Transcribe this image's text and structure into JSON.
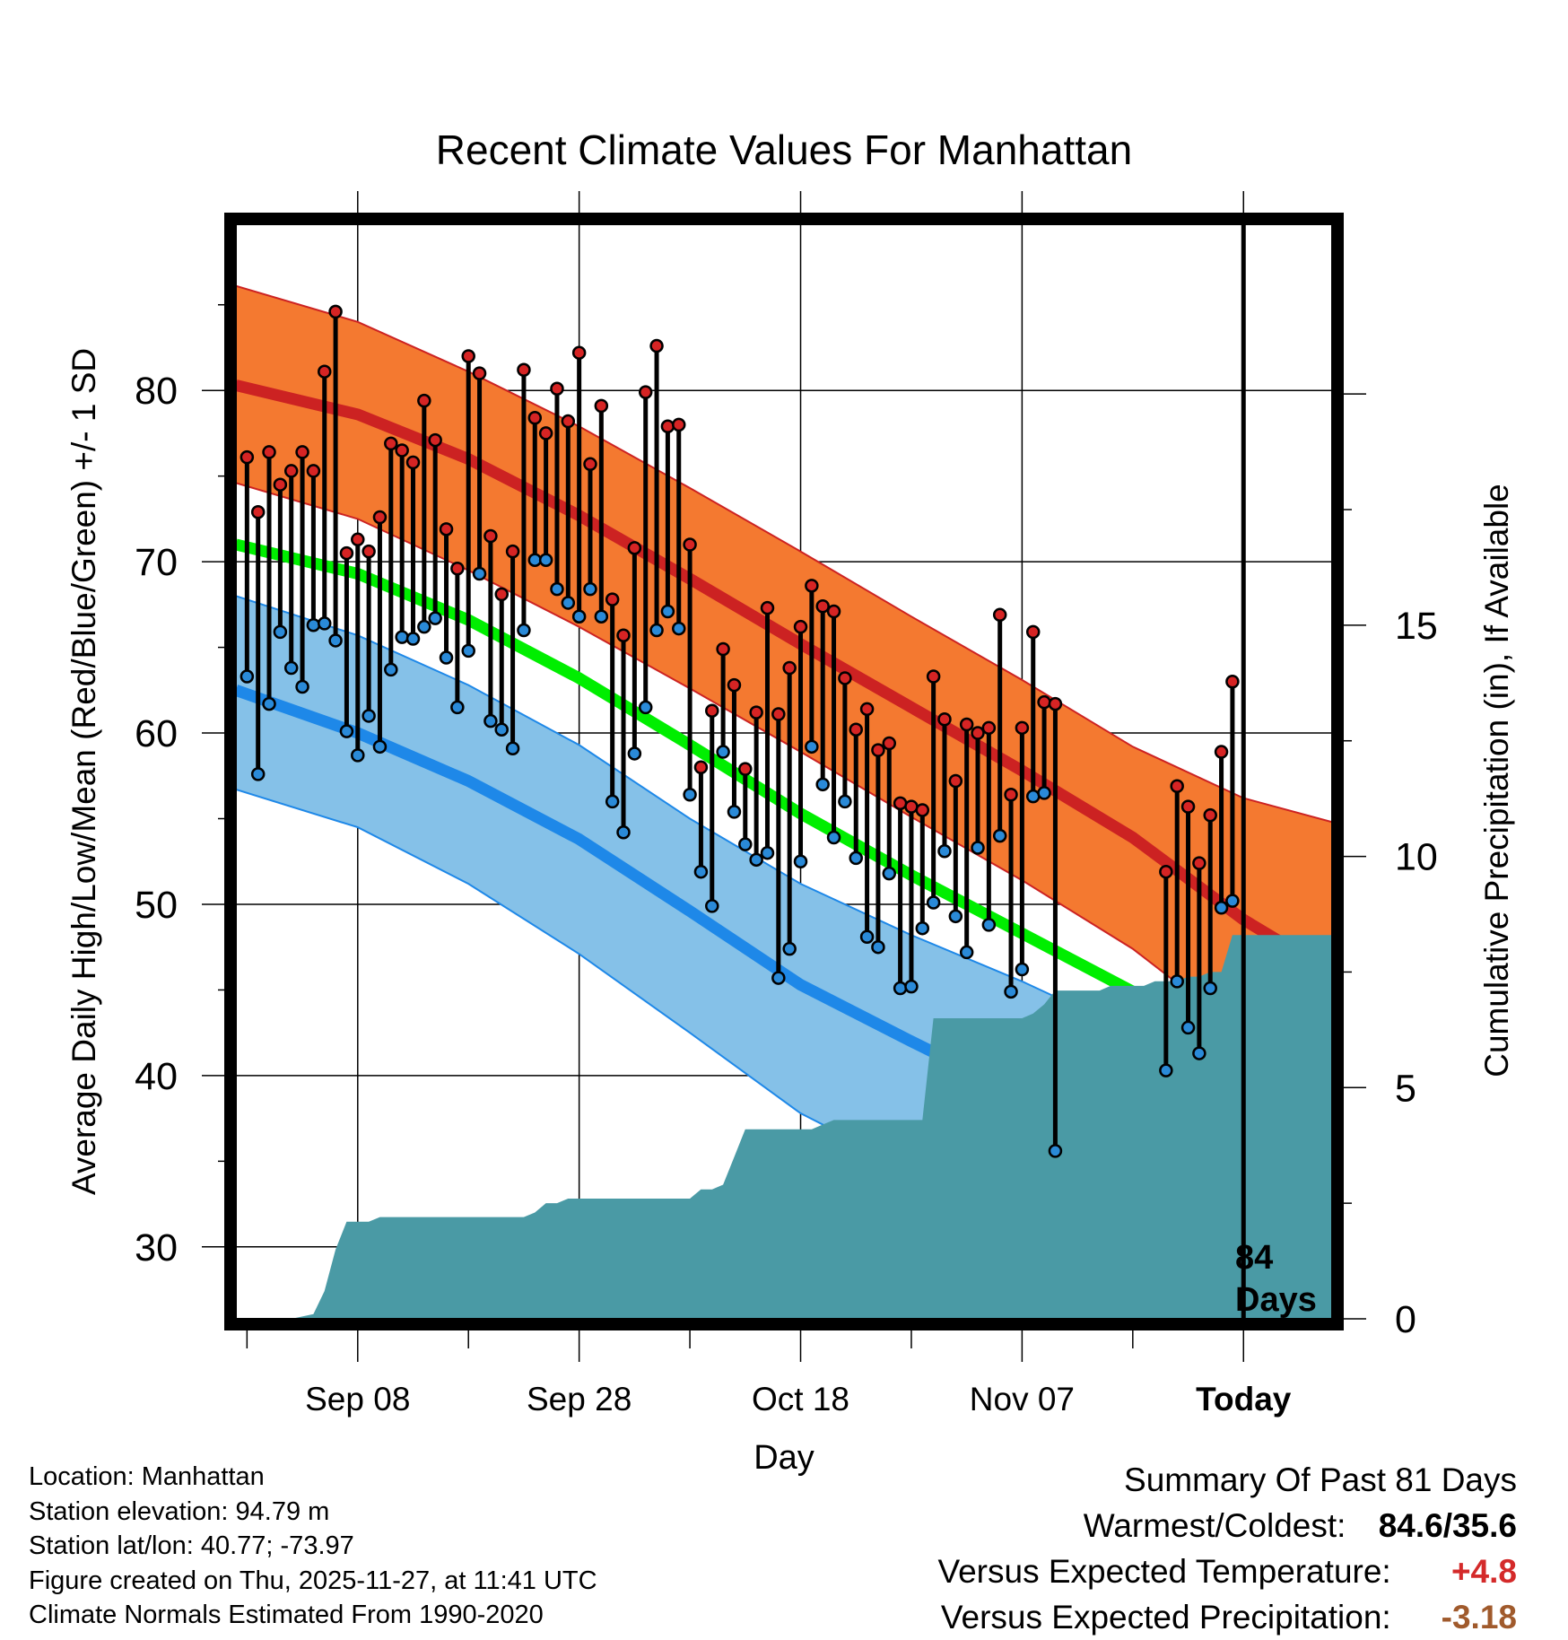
{
  "chart_data": {
    "type": "line",
    "title": "Recent Climate Values For Manhattan",
    "xlabel": "Day",
    "ylabel": "Average Daily High/Low/Mean (Red/Blue/Green) +/- 1 SD",
    "y2label": "Cumulative Precipitation (in), If Available",
    "ylim": [
      25.8,
      89.7
    ],
    "y2lim": [
      0,
      23.67
    ],
    "xlim": [
      -11,
      88
    ],
    "yticks": [
      "30",
      "40",
      "50",
      "60",
      "70",
      "80"
    ],
    "y2ticks": [
      "0",
      "5",
      "10",
      "15"
    ],
    "xtick_labels": [
      {
        "day": 0,
        "label": "Sep 08"
      },
      {
        "day": 20,
        "label": "Sep 28"
      },
      {
        "day": 40,
        "label": "Oct 18"
      },
      {
        "day": 60,
        "label": "Nov 07"
      },
      {
        "day": 80,
        "label": "Today"
      }
    ],
    "days_annotation": [
      "84",
      "Days"
    ],
    "normals": {
      "days": [
        -11,
        0,
        10,
        20,
        30,
        40,
        50,
        60,
        70,
        80,
        88
      ],
      "high_mean": [
        80.3,
        78.6,
        76.0,
        72.7,
        69.0,
        65.2,
        61.5,
        57.8,
        53.9,
        49.1,
        46.0
      ],
      "high_upper": [
        86.1,
        84.0,
        81.1,
        77.9,
        74.3,
        70.6,
        66.8,
        63.1,
        59.2,
        56.2,
        54.8
      ],
      "high_lower": [
        74.6,
        72.5,
        69.5,
        66.2,
        62.6,
        58.9,
        55.1,
        51.4,
        47.4,
        42.4,
        39.7
      ],
      "low_mean": [
        62.5,
        60.0,
        57.2,
        53.8,
        49.6,
        45.3,
        42.0,
        38.8,
        35.9,
        33.5,
        32.0
      ],
      "low_upper": [
        68.0,
        65.7,
        62.8,
        59.3,
        55.0,
        51.2,
        48.2,
        45.5,
        42.5,
        39.8,
        37.8
      ],
      "low_lower": [
        56.7,
        54.5,
        51.2,
        47.1,
        42.5,
        37.8,
        34.5,
        31.2,
        28.4,
        26.2,
        25.8
      ],
      "mean_mean": [
        71.0,
        69.3,
        66.6,
        63.2,
        59.3,
        55.3,
        51.7,
        48.3,
        44.9,
        41.3,
        38.5
      ]
    },
    "daily_observations": [
      {
        "day": -10,
        "high": 76.1,
        "low": 63.3
      },
      {
        "day": -9,
        "high": 72.9,
        "low": 57.6
      },
      {
        "day": -8,
        "high": 76.4,
        "low": 61.7
      },
      {
        "day": -7,
        "high": 74.5,
        "low": 65.9
      },
      {
        "day": -6,
        "high": 75.3,
        "low": 63.8
      },
      {
        "day": -5,
        "high": 76.4,
        "low": 62.7
      },
      {
        "day": -4,
        "high": 75.3,
        "low": 66.3
      },
      {
        "day": -3,
        "high": 81.1,
        "low": 66.4
      },
      {
        "day": -2,
        "high": 84.6,
        "low": 65.4
      },
      {
        "day": -1,
        "high": 70.5,
        "low": 60.1
      },
      {
        "day": 0,
        "high": 71.3,
        "low": 58.7
      },
      {
        "day": 1,
        "high": 70.6,
        "low": 61.0
      },
      {
        "day": 2,
        "high": 72.6,
        "low": 59.2
      },
      {
        "day": 3,
        "high": 76.9,
        "low": 63.7
      },
      {
        "day": 4,
        "high": 76.5,
        "low": 65.6
      },
      {
        "day": 5,
        "high": 75.8,
        "low": 65.5
      },
      {
        "day": 6,
        "high": 79.4,
        "low": 66.2
      },
      {
        "day": 7,
        "high": 77.1,
        "low": 66.7
      },
      {
        "day": 8,
        "high": 71.9,
        "low": 64.4
      },
      {
        "day": 9,
        "high": 69.6,
        "low": 61.5
      },
      {
        "day": 10,
        "high": 82.0,
        "low": 64.8
      },
      {
        "day": 11,
        "high": 81.0,
        "low": 69.3
      },
      {
        "day": 12,
        "high": 71.5,
        "low": 60.7
      },
      {
        "day": 13,
        "high": 68.1,
        "low": 60.2
      },
      {
        "day": 14,
        "high": 70.6,
        "low": 59.1
      },
      {
        "day": 15,
        "high": 81.2,
        "low": 66.0
      },
      {
        "day": 16,
        "high": 78.4,
        "low": 70.1
      },
      {
        "day": 17,
        "high": 77.5,
        "low": 70.1
      },
      {
        "day": 18,
        "high": 80.1,
        "low": 68.4
      },
      {
        "day": 19,
        "high": 78.2,
        "low": 67.6
      },
      {
        "day": 20,
        "high": 82.2,
        "low": 66.8
      },
      {
        "day": 21,
        "high": 75.7,
        "low": 68.4
      },
      {
        "day": 22,
        "high": 79.1,
        "low": 66.8
      },
      {
        "day": 23,
        "high": 67.8,
        "low": 56.0
      },
      {
        "day": 24,
        "high": 65.7,
        "low": 54.2
      },
      {
        "day": 25,
        "high": 70.8,
        "low": 58.8
      },
      {
        "day": 26,
        "high": 79.9,
        "low": 61.5
      },
      {
        "day": 27,
        "high": 82.6,
        "low": 66.0
      },
      {
        "day": 28,
        "high": 77.9,
        "low": 67.1
      },
      {
        "day": 29,
        "high": 78.0,
        "low": 66.1
      },
      {
        "day": 30,
        "high": 71.0,
        "low": 56.4
      },
      {
        "day": 31,
        "high": 58.0,
        "low": 51.9
      },
      {
        "day": 32,
        "high": 61.3,
        "low": 49.9
      },
      {
        "day": 33,
        "high": 64.9,
        "low": 58.9
      },
      {
        "day": 34,
        "high": 62.8,
        "low": 55.4
      },
      {
        "day": 35,
        "high": 57.9,
        "low": 53.5
      },
      {
        "day": 36,
        "high": 61.2,
        "low": 52.6
      },
      {
        "day": 37,
        "high": 67.3,
        "low": 53.0
      },
      {
        "day": 38,
        "high": 61.1,
        "low": 45.7
      },
      {
        "day": 39,
        "high": 63.8,
        "low": 47.4
      },
      {
        "day": 40,
        "high": 66.2,
        "low": 52.5
      },
      {
        "day": 41,
        "high": 68.6,
        "low": 59.2
      },
      {
        "day": 42,
        "high": 67.4,
        "low": 57.0
      },
      {
        "day": 43,
        "high": 67.1,
        "low": 53.9
      },
      {
        "day": 44,
        "high": 63.2,
        "low": 56.0
      },
      {
        "day": 45,
        "high": 60.2,
        "low": 52.7
      },
      {
        "day": 46,
        "high": 61.4,
        "low": 48.1
      },
      {
        "day": 47,
        "high": 59.0,
        "low": 47.5
      },
      {
        "day": 48,
        "high": 59.4,
        "low": 51.8
      },
      {
        "day": 49,
        "high": 55.9,
        "low": 45.1
      },
      {
        "day": 50,
        "high": 55.7,
        "low": 45.2
      },
      {
        "day": 51,
        "high": 55.5,
        "low": 48.6
      },
      {
        "day": 52,
        "high": 63.3,
        "low": 50.1
      },
      {
        "day": 53,
        "high": 60.8,
        "low": 53.1
      },
      {
        "day": 54,
        "high": 57.2,
        "low": 49.3
      },
      {
        "day": 55,
        "high": 60.5,
        "low": 47.2
      },
      {
        "day": 56,
        "high": 60.0,
        "low": 53.3
      },
      {
        "day": 57,
        "high": 60.3,
        "low": 48.8
      },
      {
        "day": 58,
        "high": 66.9,
        "low": 54.0
      },
      {
        "day": 59,
        "high": 56.4,
        "low": 44.9
      },
      {
        "day": 60,
        "high": 60.3,
        "low": 46.2
      },
      {
        "day": 61,
        "high": 65.9,
        "low": 56.3
      },
      {
        "day": 62,
        "high": 61.8,
        "low": 56.5
      },
      {
        "day": 63,
        "high": 61.7,
        "low": 35.6
      },
      {
        "day": 73,
        "high": 51.9,
        "low": 40.3
      },
      {
        "day": 74,
        "high": 56.9,
        "low": 45.5
      },
      {
        "day": 75,
        "high": 55.7,
        "low": 42.8
      },
      {
        "day": 76,
        "high": 52.4,
        "low": 41.3
      },
      {
        "day": 77,
        "high": 55.2,
        "low": 45.1
      },
      {
        "day": 78,
        "high": 58.9,
        "low": 49.8
      },
      {
        "day": 79,
        "high": 63.0,
        "low": 50.2
      }
    ],
    "cumulative_precip": {
      "days": [
        -11,
        -6,
        -4,
        -3,
        -2,
        -1,
        0,
        1,
        2,
        3,
        4,
        5,
        6,
        7,
        8,
        9,
        10,
        11,
        12,
        13,
        14,
        15,
        16,
        17,
        18,
        19,
        20,
        21,
        22,
        23,
        24,
        25,
        26,
        27,
        28,
        29,
        30,
        31,
        32,
        33,
        34,
        35,
        36,
        37,
        38,
        39,
        40,
        41,
        42,
        43,
        44,
        45,
        46,
        47,
        48,
        49,
        50,
        51,
        52,
        53,
        54,
        55,
        56,
        57,
        58,
        59,
        60,
        61,
        62,
        63,
        64,
        65,
        66,
        67,
        68,
        69,
        70,
        71,
        72,
        73,
        74,
        75,
        76,
        77,
        78,
        79,
        80,
        88
      ],
      "values": [
        0,
        0,
        0.1,
        0.6,
        1.5,
        2.1,
        2.1,
        2.1,
        2.2,
        2.2,
        2.2,
        2.2,
        2.2,
        2.2,
        2.2,
        2.2,
        2.2,
        2.2,
        2.2,
        2.2,
        2.2,
        2.2,
        2.3,
        2.5,
        2.5,
        2.6,
        2.6,
        2.6,
        2.6,
        2.6,
        2.6,
        2.6,
        2.6,
        2.6,
        2.6,
        2.6,
        2.6,
        2.8,
        2.8,
        2.9,
        3.5,
        4.1,
        4.1,
        4.1,
        4.1,
        4.1,
        4.1,
        4.1,
        4.2,
        4.3,
        4.3,
        4.3,
        4.3,
        4.3,
        4.3,
        4.3,
        4.3,
        4.3,
        6.5,
        6.5,
        6.5,
        6.5,
        6.5,
        6.5,
        6.5,
        6.5,
        6.5,
        6.6,
        6.8,
        7.1,
        7.1,
        7.1,
        7.1,
        7.1,
        7.2,
        7.2,
        7.2,
        7.2,
        7.3,
        7.3,
        7.3,
        7.4,
        7.4,
        7.5,
        7.5,
        8.3,
        8.3,
        8.3
      ]
    },
    "colors": {
      "high_band": "#f47930",
      "high_line": "#cc2222",
      "low_band": "#85c1e8",
      "low_line": "#1e88e8",
      "mean_line": "#00ee00",
      "precip_fill": "#4a9aa5",
      "high_marker": "#d62424",
      "low_marker": "#2a8ad8"
    }
  },
  "footer": {
    "location": "Location: Manhattan",
    "elevation": "Station elevation: 94.79 m",
    "latlon": "Station lat/lon: 40.77; -73.97",
    "created": "Figure created on Thu, 2025-11-27, at 11:41 UTC",
    "normals": "Climate Normals Estimated From 1990-2020"
  },
  "summary": {
    "title": "Summary Of Past 81 Days",
    "warmest_label": "Warmest/Coldest:",
    "warmest_value": "84.6/35.6",
    "temp_label": "Versus Expected Temperature:",
    "temp_value": "+4.8",
    "temp_color": "#d42a2a",
    "precip_label": "Versus Expected Precipitation:",
    "precip_value": "-3.18",
    "precip_color": "#a05a2c"
  }
}
